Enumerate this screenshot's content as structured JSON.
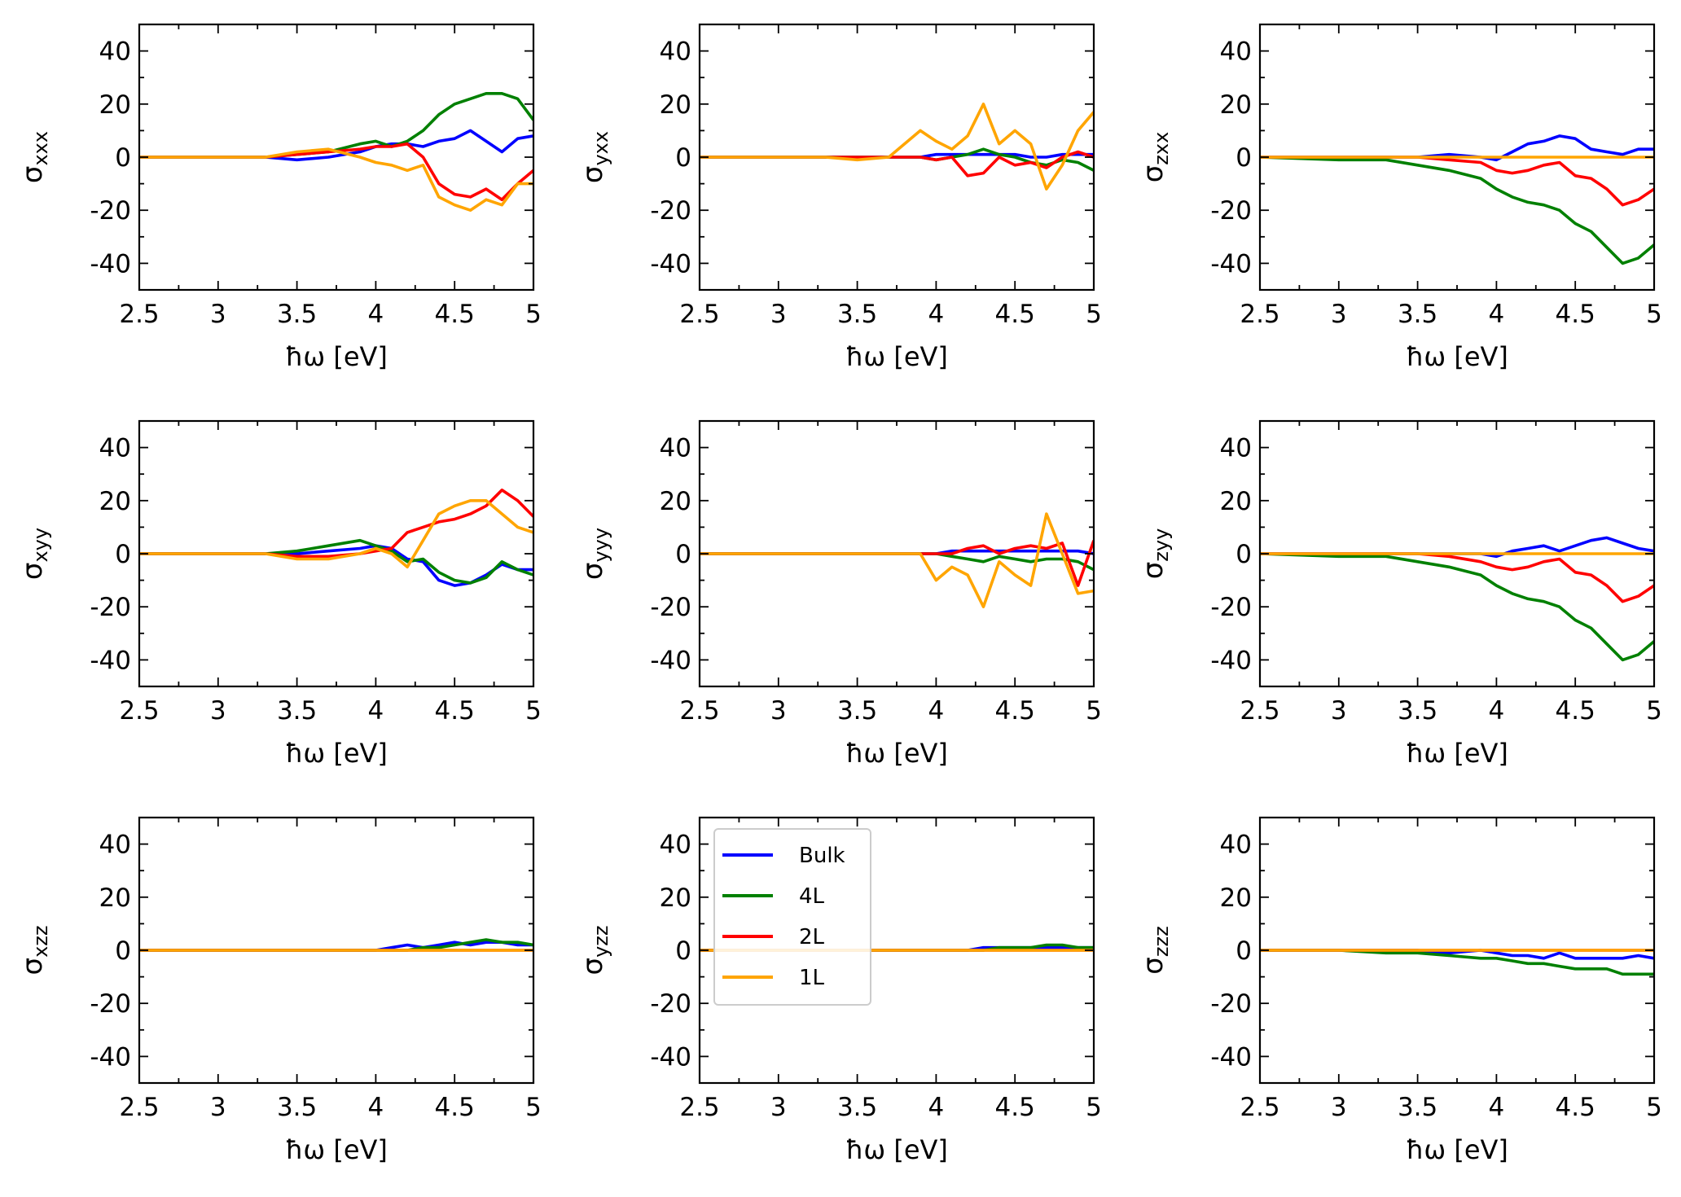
{
  "figure": {
    "xlabel": "ħω [eV]",
    "xticks": [
      2.5,
      3,
      3.5,
      4,
      4.5,
      5
    ],
    "xtick_labels": [
      "2.5",
      "3",
      "3.5",
      "4",
      "4.5",
      "5"
    ],
    "yticks": [
      -40,
      -20,
      0,
      20,
      40
    ],
    "ytick_labels": [
      "-40",
      "-20",
      "0",
      "20",
      "40"
    ],
    "xlim": [
      2.5,
      5.0
    ],
    "ylim": [
      -50,
      50
    ]
  },
  "legend": {
    "panel": "yzz",
    "placement": "upper-left",
    "entries": [
      {
        "label": "Bulk",
        "color": "#0000ff"
      },
      {
        "label": "4L",
        "color": "#008000"
      },
      {
        "label": "2L",
        "color": "#ff0000"
      },
      {
        "label": "1L",
        "color": "#ffa500"
      }
    ]
  },
  "chart_data": [
    {
      "id": "xxx",
      "type": "line",
      "ylabel_main": "σ",
      "ylabel_sub": "xxx",
      "xlabel": "ħω [eV]",
      "xlim": [
        2.5,
        5.0
      ],
      "ylim": [
        -50,
        50
      ],
      "x": [
        2.5,
        3.0,
        3.3,
        3.5,
        3.7,
        3.9,
        4.0,
        4.1,
        4.2,
        4.3,
        4.4,
        4.5,
        4.6,
        4.7,
        4.8,
        4.9,
        5.0
      ],
      "series": [
        {
          "name": "Bulk",
          "color": "#0000ff",
          "values": [
            0,
            0,
            0,
            -1,
            0,
            2,
            4,
            5,
            5,
            4,
            6,
            7,
            10,
            6,
            2,
            7,
            8
          ]
        },
        {
          "name": "4L",
          "color": "#008000",
          "values": [
            0,
            0,
            0,
            1,
            2,
            5,
            6,
            4,
            6,
            10,
            16,
            20,
            22,
            24,
            24,
            22,
            14
          ]
        },
        {
          "name": "2L",
          "color": "#ff0000",
          "values": [
            0,
            0,
            0,
            1,
            2,
            3,
            4,
            4,
            5,
            0,
            -10,
            -14,
            -15,
            -12,
            -16,
            -10,
            -5
          ]
        },
        {
          "name": "1L",
          "color": "#ffa500",
          "values": [
            0,
            0,
            0,
            2,
            3,
            0,
            -2,
            -3,
            -5,
            -3,
            -15,
            -18,
            -20,
            -16,
            -18,
            -10,
            -10
          ]
        }
      ]
    },
    {
      "id": "yxx",
      "type": "line",
      "ylabel_main": "σ",
      "ylabel_sub": "yxx",
      "xlabel": "ħω [eV]",
      "xlim": [
        2.5,
        5.0
      ],
      "ylim": [
        -50,
        50
      ],
      "x": [
        2.5,
        3.0,
        3.3,
        3.5,
        3.7,
        3.9,
        4.0,
        4.1,
        4.2,
        4.3,
        4.4,
        4.5,
        4.6,
        4.7,
        4.8,
        4.9,
        5.0
      ],
      "series": [
        {
          "name": "Bulk",
          "color": "#0000ff",
          "values": [
            0,
            0,
            0,
            0,
            0,
            0,
            1,
            1,
            1,
            1,
            1,
            1,
            0,
            0,
            1,
            1,
            1
          ]
        },
        {
          "name": "4L",
          "color": "#008000",
          "values": [
            0,
            0,
            0,
            0,
            0,
            0,
            -1,
            0,
            1,
            3,
            1,
            0,
            -2,
            -3,
            -1,
            -2,
            -5
          ]
        },
        {
          "name": "2L",
          "color": "#ff0000",
          "values": [
            0,
            0,
            0,
            0,
            0,
            0,
            -1,
            0,
            -7,
            -6,
            0,
            -3,
            -2,
            -4,
            0,
            2,
            0
          ]
        },
        {
          "name": "1L",
          "color": "#ffa500",
          "values": [
            0,
            0,
            0,
            -1,
            0,
            10,
            6,
            3,
            8,
            20,
            5,
            10,
            5,
            -12,
            -3,
            10,
            17
          ]
        }
      ]
    },
    {
      "id": "zxx",
      "type": "line",
      "ylabel_main": "σ",
      "ylabel_sub": "zxx",
      "xlabel": "ħω [eV]",
      "xlim": [
        2.5,
        5.0
      ],
      "ylim": [
        -50,
        50
      ],
      "x": [
        2.5,
        3.0,
        3.3,
        3.5,
        3.7,
        3.9,
        4.0,
        4.1,
        4.2,
        4.3,
        4.4,
        4.5,
        4.6,
        4.7,
        4.8,
        4.9,
        5.0
      ],
      "series": [
        {
          "name": "Bulk",
          "color": "#0000ff",
          "values": [
            0,
            0,
            0,
            0,
            1,
            0,
            -1,
            2,
            5,
            6,
            8,
            7,
            3,
            2,
            1,
            3,
            3
          ]
        },
        {
          "name": "4L",
          "color": "#008000",
          "values": [
            0,
            -1,
            -1,
            -3,
            -5,
            -8,
            -12,
            -15,
            -17,
            -18,
            -20,
            -25,
            -28,
            -34,
            -40,
            -38,
            -33
          ]
        },
        {
          "name": "2L",
          "color": "#ff0000",
          "values": [
            0,
            0,
            0,
            0,
            -1,
            -2,
            -5,
            -6,
            -5,
            -3,
            -2,
            -7,
            -8,
            -12,
            -18,
            -16,
            -12
          ]
        },
        {
          "name": "1L",
          "color": "#ffa500",
          "values": [
            0,
            0,
            0,
            0,
            0,
            0,
            0,
            0,
            0,
            0,
            0,
            0,
            0,
            0,
            0,
            0,
            0
          ]
        }
      ]
    },
    {
      "id": "xyy",
      "type": "line",
      "ylabel_main": "σ",
      "ylabel_sub": "xyy",
      "xlabel": "ħω [eV]",
      "xlim": [
        2.5,
        5.0
      ],
      "ylim": [
        -50,
        50
      ],
      "x": [
        2.5,
        3.0,
        3.3,
        3.5,
        3.7,
        3.9,
        4.0,
        4.1,
        4.2,
        4.3,
        4.4,
        4.5,
        4.6,
        4.7,
        4.8,
        4.9,
        5.0
      ],
      "series": [
        {
          "name": "Bulk",
          "color": "#0000ff",
          "values": [
            0,
            0,
            0,
            0,
            1,
            2,
            3,
            2,
            -2,
            -3,
            -10,
            -12,
            -11,
            -8,
            -4,
            -6,
            -6
          ]
        },
        {
          "name": "4L",
          "color": "#008000",
          "values": [
            0,
            0,
            0,
            1,
            3,
            5,
            3,
            1,
            -3,
            -2,
            -7,
            -10,
            -11,
            -9,
            -3,
            -6,
            -8
          ]
        },
        {
          "name": "2L",
          "color": "#ff0000",
          "values": [
            0,
            0,
            0,
            -1,
            -1,
            0,
            1,
            2,
            8,
            10,
            12,
            13,
            15,
            18,
            24,
            20,
            14
          ]
        },
        {
          "name": "1L",
          "color": "#ffa500",
          "values": [
            0,
            0,
            0,
            -2,
            -2,
            0,
            2,
            0,
            -5,
            5,
            15,
            18,
            20,
            20,
            15,
            10,
            8
          ]
        }
      ]
    },
    {
      "id": "yyy",
      "type": "line",
      "ylabel_main": "σ",
      "ylabel_sub": "yyy",
      "xlabel": "ħω [eV]",
      "xlim": [
        2.5,
        5.0
      ],
      "ylim": [
        -50,
        50
      ],
      "x": [
        2.5,
        3.0,
        3.3,
        3.5,
        3.7,
        3.9,
        4.0,
        4.1,
        4.2,
        4.3,
        4.4,
        4.5,
        4.6,
        4.7,
        4.8,
        4.9,
        5.0
      ],
      "series": [
        {
          "name": "Bulk",
          "color": "#0000ff",
          "values": [
            0,
            0,
            0,
            0,
            0,
            0,
            0,
            1,
            1,
            1,
            1,
            1,
            1,
            1,
            1,
            1,
            0
          ]
        },
        {
          "name": "4L",
          "color": "#008000",
          "values": [
            0,
            0,
            0,
            0,
            0,
            0,
            0,
            -1,
            -2,
            -3,
            -1,
            -2,
            -3,
            -2,
            -2,
            -3,
            -6
          ]
        },
        {
          "name": "2L",
          "color": "#ff0000",
          "values": [
            0,
            0,
            0,
            0,
            0,
            0,
            0,
            0,
            2,
            3,
            0,
            2,
            3,
            2,
            4,
            -12,
            5
          ]
        },
        {
          "name": "1L",
          "color": "#ffa500",
          "values": [
            0,
            0,
            0,
            0,
            0,
            0,
            -10,
            -5,
            -8,
            -20,
            -3,
            -8,
            -12,
            15,
            0,
            -15,
            -14
          ]
        }
      ]
    },
    {
      "id": "zyy",
      "type": "line",
      "ylabel_main": "σ",
      "ylabel_sub": "zyy",
      "xlabel": "ħω [eV]",
      "xlim": [
        2.5,
        5.0
      ],
      "ylim": [
        -50,
        50
      ],
      "x": [
        2.5,
        3.0,
        3.3,
        3.5,
        3.7,
        3.9,
        4.0,
        4.1,
        4.2,
        4.3,
        4.4,
        4.5,
        4.6,
        4.7,
        4.8,
        4.9,
        5.0
      ],
      "series": [
        {
          "name": "Bulk",
          "color": "#0000ff",
          "values": [
            0,
            0,
            0,
            0,
            0,
            0,
            -1,
            1,
            2,
            3,
            1,
            3,
            5,
            6,
            4,
            2,
            1
          ]
        },
        {
          "name": "4L",
          "color": "#008000",
          "values": [
            0,
            -1,
            -1,
            -3,
            -5,
            -8,
            -12,
            -15,
            -17,
            -18,
            -20,
            -25,
            -28,
            -34,
            -40,
            -38,
            -33
          ]
        },
        {
          "name": "2L",
          "color": "#ff0000",
          "values": [
            0,
            0,
            0,
            0,
            -1,
            -3,
            -5,
            -6,
            -5,
            -3,
            -2,
            -7,
            -8,
            -12,
            -18,
            -16,
            -12
          ]
        },
        {
          "name": "1L",
          "color": "#ffa500",
          "values": [
            0,
            0,
            0,
            0,
            0,
            0,
            0,
            0,
            0,
            0,
            0,
            0,
            0,
            0,
            0,
            0,
            0
          ]
        }
      ]
    },
    {
      "id": "xzz",
      "type": "line",
      "ylabel_main": "σ",
      "ylabel_sub": "xzz",
      "xlabel": "ħω [eV]",
      "xlim": [
        2.5,
        5.0
      ],
      "ylim": [
        -50,
        50
      ],
      "x": [
        2.5,
        3.0,
        3.3,
        3.5,
        3.7,
        3.9,
        4.0,
        4.1,
        4.2,
        4.3,
        4.4,
        4.5,
        4.6,
        4.7,
        4.8,
        4.9,
        5.0
      ],
      "series": [
        {
          "name": "Bulk",
          "color": "#0000ff",
          "values": [
            0,
            0,
            0,
            0,
            0,
            0,
            0,
            1,
            2,
            1,
            2,
            3,
            2,
            3,
            3,
            2,
            2
          ]
        },
        {
          "name": "4L",
          "color": "#008000",
          "values": [
            0,
            0,
            0,
            0,
            0,
            0,
            0,
            0,
            0,
            1,
            1,
            2,
            3,
            4,
            3,
            3,
            2
          ]
        },
        {
          "name": "2L",
          "color": "#ff0000",
          "values": [
            0,
            0,
            0,
            0,
            0,
            0,
            0,
            0,
            0,
            0,
            0,
            0,
            0,
            0,
            0,
            0,
            0
          ]
        },
        {
          "name": "1L",
          "color": "#ffa500",
          "values": [
            0,
            0,
            0,
            0,
            0,
            0,
            0,
            0,
            0,
            0,
            0,
            0,
            0,
            0,
            0,
            0,
            0
          ]
        }
      ]
    },
    {
      "id": "yzz",
      "type": "line",
      "ylabel_main": "σ",
      "ylabel_sub": "yzz",
      "xlabel": "ħω [eV]",
      "xlim": [
        2.5,
        5.0
      ],
      "ylim": [
        -50,
        50
      ],
      "x": [
        2.5,
        3.0,
        3.3,
        3.5,
        3.7,
        3.9,
        4.0,
        4.1,
        4.2,
        4.3,
        4.4,
        4.5,
        4.6,
        4.7,
        4.8,
        4.9,
        5.0
      ],
      "series": [
        {
          "name": "Bulk",
          "color": "#0000ff",
          "values": [
            0,
            0,
            0,
            0,
            0,
            0,
            0,
            0,
            0,
            1,
            1,
            1,
            1,
            1,
            1,
            1,
            1
          ]
        },
        {
          "name": "4L",
          "color": "#008000",
          "values": [
            0,
            0,
            0,
            0,
            0,
            0,
            0,
            0,
            0,
            0,
            1,
            1,
            1,
            2,
            2,
            1,
            1
          ]
        },
        {
          "name": "2L",
          "color": "#ff0000",
          "values": [
            0,
            0,
            0,
            0,
            0,
            0,
            0,
            0,
            0,
            0,
            0,
            0,
            0,
            0,
            0,
            0,
            0
          ]
        },
        {
          "name": "1L",
          "color": "#ffa500",
          "values": [
            0,
            0,
            0,
            0,
            0,
            0,
            0,
            0,
            0,
            0,
            0,
            0,
            0,
            0,
            0,
            0,
            0
          ]
        }
      ]
    },
    {
      "id": "zzz",
      "type": "line",
      "ylabel_main": "σ",
      "ylabel_sub": "zzz",
      "xlabel": "ħω [eV]",
      "xlim": [
        2.5,
        5.0
      ],
      "ylim": [
        -50,
        50
      ],
      "x": [
        2.5,
        3.0,
        3.3,
        3.5,
        3.7,
        3.9,
        4.0,
        4.1,
        4.2,
        4.3,
        4.4,
        4.5,
        4.6,
        4.7,
        4.8,
        4.9,
        5.0
      ],
      "series": [
        {
          "name": "Bulk",
          "color": "#0000ff",
          "values": [
            0,
            0,
            0,
            0,
            -1,
            0,
            -1,
            -2,
            -2,
            -3,
            -1,
            -3,
            -3,
            -3,
            -3,
            -2,
            -3
          ]
        },
        {
          "name": "4L",
          "color": "#008000",
          "values": [
            0,
            0,
            -1,
            -1,
            -2,
            -3,
            -3,
            -4,
            -5,
            -5,
            -6,
            -7,
            -7,
            -7,
            -9,
            -9,
            -9
          ]
        },
        {
          "name": "2L",
          "color": "#ff0000",
          "values": [
            0,
            0,
            0,
            0,
            0,
            0,
            0,
            0,
            0,
            0,
            0,
            0,
            0,
            0,
            0,
            0,
            0
          ]
        },
        {
          "name": "1L",
          "color": "#ffa500",
          "values": [
            0,
            0,
            0,
            0,
            0,
            0,
            0,
            0,
            0,
            0,
            0,
            0,
            0,
            0,
            0,
            0,
            0
          ]
        }
      ]
    }
  ]
}
